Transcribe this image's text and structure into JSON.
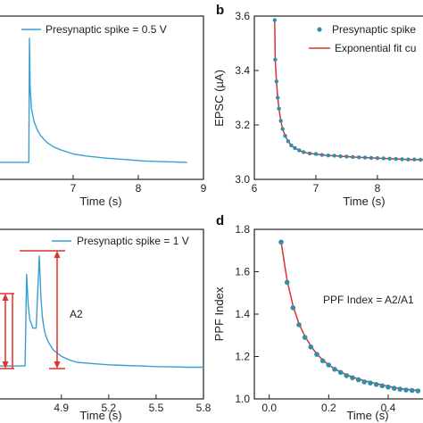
{
  "colors": {
    "trace": "#3a9fd0",
    "fit": "#e0302c",
    "marker": "#2f8fa8",
    "annotation": "#e0302c",
    "axis": "#222222"
  },
  "chart_data": [
    {
      "id": "a",
      "panel_letter": "",
      "type": "line",
      "xlabel": "Time (s)",
      "ylabel": "",
      "xlim": [
        5.85,
        9.0
      ],
      "ylim": [
        0,
        1
      ],
      "x_ticks": [
        7,
        8,
        9
      ],
      "x_tick_labels": [
        "7",
        "8",
        "9"
      ],
      "y_ticks": [],
      "legend": {
        "position": "top-right",
        "entries": [
          "Presynaptic spike = 0.5 V"
        ]
      },
      "series": [
        {
          "name": "Presynaptic spike = 0.5 V",
          "x": [
            5.85,
            6.2,
            6.32,
            6.33,
            6.34,
            6.36,
            6.4,
            6.45,
            6.5,
            6.6,
            6.7,
            6.8,
            7.0,
            7.2,
            7.5,
            7.8,
            8.1,
            8.4,
            8.75
          ],
          "values": [
            0.07,
            0.07,
            0.07,
            0.95,
            0.6,
            0.45,
            0.36,
            0.3,
            0.26,
            0.21,
            0.18,
            0.16,
            0.13,
            0.115,
            0.1,
            0.09,
            0.08,
            0.075,
            0.07
          ]
        }
      ]
    },
    {
      "id": "b",
      "panel_letter": "b",
      "type": "scatter",
      "xlabel": "Time (s)",
      "ylabel": "EPSC (µA)",
      "xlim": [
        6.0,
        8.9
      ],
      "ylim": [
        3.0,
        3.6
      ],
      "x_ticks": [
        6,
        7,
        8
      ],
      "x_tick_labels": [
        "6",
        "7",
        "8"
      ],
      "y_ticks": [
        3.0,
        3.2,
        3.4,
        3.6
      ],
      "y_tick_labels": [
        "3.0",
        "3.2",
        "3.4",
        "3.6"
      ],
      "legend": {
        "position": "top-right",
        "entries": [
          "Presynaptic spike",
          "Exponential fit cu"
        ]
      },
      "series": [
        {
          "name": "Presynaptic spike",
          "x": [
            6.33,
            6.34,
            6.36,
            6.38,
            6.4,
            6.43,
            6.46,
            6.5,
            6.55,
            6.6,
            6.66,
            6.73,
            6.8,
            6.9,
            7.0,
            7.1,
            7.2,
            7.3,
            7.4,
            7.5,
            7.6,
            7.7,
            7.8,
            7.9,
            8.0,
            8.1,
            8.2,
            8.3,
            8.4,
            8.5,
            8.6,
            8.7,
            8.8
          ],
          "values": [
            3.585,
            3.44,
            3.36,
            3.3,
            3.26,
            3.215,
            3.185,
            3.16,
            3.14,
            3.125,
            3.115,
            3.107,
            3.1,
            3.095,
            3.093,
            3.09,
            3.088,
            3.087,
            3.085,
            3.084,
            3.082,
            3.081,
            3.08,
            3.079,
            3.078,
            3.077,
            3.076,
            3.075,
            3.074,
            3.073,
            3.073,
            3.072,
            3.072
          ]
        },
        {
          "name": "Exponential fit cu",
          "x": [
            6.33,
            6.34,
            6.36,
            6.38,
            6.4,
            6.43,
            6.46,
            6.5,
            6.55,
            6.6,
            6.66,
            6.73,
            6.8,
            6.9,
            7.0,
            7.1,
            7.2,
            7.3,
            7.4,
            7.5,
            7.6,
            7.7,
            7.8,
            7.9,
            8.0,
            8.1,
            8.2,
            8.3,
            8.4,
            8.5,
            8.6,
            8.7,
            8.8
          ],
          "values": [
            3.585,
            3.44,
            3.36,
            3.3,
            3.26,
            3.215,
            3.185,
            3.16,
            3.14,
            3.125,
            3.115,
            3.107,
            3.1,
            3.095,
            3.093,
            3.09,
            3.088,
            3.087,
            3.085,
            3.084,
            3.082,
            3.081,
            3.08,
            3.079,
            3.078,
            3.077,
            3.076,
            3.075,
            3.074,
            3.073,
            3.073,
            3.072,
            3.072
          ]
        }
      ]
    },
    {
      "id": "c",
      "panel_letter": "",
      "type": "line",
      "xlabel": "Time (s)",
      "ylabel": "",
      "xlim": [
        4.5,
        5.8
      ],
      "ylim": [
        0,
        1
      ],
      "x_ticks": [
        4.9,
        5.2,
        5.5,
        5.8
      ],
      "x_tick_labels": [
        "4.9",
        "5.2",
        "5.5",
        "5.8"
      ],
      "y_ticks": [],
      "legend": {
        "position": "top-right",
        "entries": [
          "Presynaptic spike = 1 V"
        ]
      },
      "annotations": [
        {
          "text": "A2"
        }
      ],
      "series": [
        {
          "name": "Presynaptic spike = 1 V",
          "x": [
            4.5,
            4.6,
            4.67,
            4.68,
            4.69,
            4.7,
            4.72,
            4.74,
            4.76,
            4.77,
            4.78,
            4.79,
            4.8,
            4.82,
            4.85,
            4.9,
            4.95,
            5.0,
            5.1,
            5.2,
            5.3,
            5.4,
            5.5,
            5.6,
            5.7,
            5.8
          ],
          "values": [
            0.05,
            0.05,
            0.05,
            0.8,
            0.55,
            0.43,
            0.36,
            0.36,
            0.95,
            0.62,
            0.45,
            0.36,
            0.3,
            0.24,
            0.18,
            0.13,
            0.1,
            0.08,
            0.07,
            0.06,
            0.055,
            0.05,
            0.045,
            0.043,
            0.04,
            0.04
          ]
        }
      ]
    },
    {
      "id": "d",
      "panel_letter": "d",
      "type": "scatter",
      "xlabel": "Time (s)",
      "ylabel": "PPF Index",
      "xlim": [
        -0.05,
        0.55
      ],
      "ylim": [
        1.0,
        1.8
      ],
      "x_ticks": [
        0.0,
        0.2,
        0.4
      ],
      "x_tick_labels": [
        "0.0",
        "0.2",
        "0.4"
      ],
      "y_ticks": [
        1.0,
        1.2,
        1.4,
        1.6,
        1.8
      ],
      "y_tick_labels": [
        "1.0",
        "1.2",
        "1.4",
        "1.6",
        "1.8"
      ],
      "annotations": [
        {
          "text": "PPF Index = A2/A1"
        }
      ],
      "series": [
        {
          "name": "",
          "x": [
            0.04,
            0.06,
            0.08,
            0.1,
            0.12,
            0.14,
            0.16,
            0.18,
            0.2,
            0.22,
            0.24,
            0.26,
            0.28,
            0.3,
            0.32,
            0.34,
            0.36,
            0.38,
            0.4,
            0.42,
            0.44,
            0.46,
            0.48,
            0.5
          ],
          "values": [
            1.74,
            1.55,
            1.43,
            1.35,
            1.29,
            1.245,
            1.21,
            1.18,
            1.16,
            1.14,
            1.125,
            1.11,
            1.1,
            1.09,
            1.08,
            1.075,
            1.068,
            1.062,
            1.056,
            1.05,
            1.046,
            1.042,
            1.04,
            1.038
          ]
        },
        {
          "name": "",
          "x": [
            0.04,
            0.06,
            0.08,
            0.1,
            0.12,
            0.14,
            0.16,
            0.18,
            0.2,
            0.22,
            0.24,
            0.26,
            0.28,
            0.3,
            0.32,
            0.34,
            0.36,
            0.38,
            0.4,
            0.42,
            0.44,
            0.46,
            0.48,
            0.5
          ],
          "values": [
            1.74,
            1.56,
            1.44,
            1.355,
            1.295,
            1.25,
            1.212,
            1.183,
            1.16,
            1.142,
            1.127,
            1.114,
            1.103,
            1.094,
            1.086,
            1.079,
            1.072,
            1.066,
            1.06,
            1.054,
            1.049,
            1.045,
            1.042,
            1.04
          ]
        }
      ]
    }
  ]
}
